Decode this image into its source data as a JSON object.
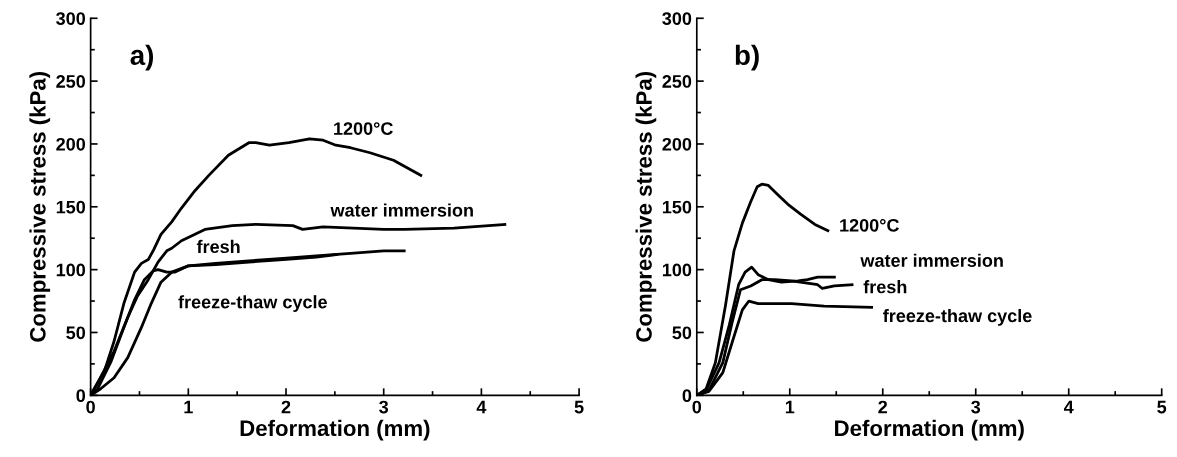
{
  "chart_data": [
    {
      "type": "line",
      "title": "a)",
      "xlabel": "Deformation (mm)",
      "ylabel": "Compressive stress (kPa)",
      "xlim": [
        0,
        5
      ],
      "ylim": [
        0,
        300
      ],
      "xticks": [
        0,
        1,
        2,
        3,
        4,
        5
      ],
      "yticks": [
        0,
        50,
        100,
        150,
        200,
        250,
        300
      ],
      "grid": false,
      "legend": false,
      "line_style": "solid",
      "marker": "none",
      "series": [
        {
          "name": "1200°C",
          "color": "#000000",
          "x": [
            0,
            0.14,
            0.24,
            0.34,
            0.45,
            0.52,
            0.59,
            0.64,
            0.72,
            0.83,
            0.93,
            1.07,
            1.21,
            1.41,
            1.62,
            1.69,
            1.83,
            2.03,
            2.24,
            2.38,
            2.51,
            2.66,
            2.86,
            3.1,
            3.38
          ],
          "values": [
            0,
            19,
            43,
            73,
            98,
            105,
            108,
            115,
            128,
            138,
            149,
            163,
            175,
            191,
            201,
            201,
            199,
            201,
            204,
            203,
            199,
            197,
            193,
            187,
            175
          ]
        },
        {
          "name": "water immersion",
          "color": "#000000",
          "x": [
            0,
            0.1,
            0.24,
            0.38,
            0.48,
            0.59,
            0.69,
            0.78,
            0.83,
            0.93,
            1.17,
            1.45,
            1.69,
            2.07,
            2.17,
            2.38,
            3.0,
            3.21,
            3.72,
            4.24
          ],
          "values": [
            0,
            14,
            35,
            62,
            79,
            92,
            106,
            115,
            117,
            123,
            132,
            135,
            136,
            135,
            132,
            134,
            132,
            132,
            133,
            136
          ]
        },
        {
          "name": "fresh",
          "color": "#000000",
          "x": [
            0,
            0.07,
            0.21,
            0.34,
            0.45,
            0.55,
            0.64,
            0.69,
            0.78,
            0.86,
            1.0,
            1.28,
            1.62,
            1.97,
            2.31,
            2.66,
            3.0,
            3.21
          ],
          "values": [
            0,
            5,
            27,
            54,
            76,
            92,
            99,
            100,
            98,
            98,
            103,
            105,
            107,
            109,
            111,
            113,
            115,
            115
          ]
        },
        {
          "name": "freeze-thaw cycle",
          "color": "#000000",
          "x": [
            0,
            0.1,
            0.24,
            0.38,
            0.52,
            0.62,
            0.72,
            0.83,
            1.0,
            1.28,
            1.62,
            1.97,
            2.31,
            2.52
          ],
          "values": [
            0,
            5,
            14,
            30,
            54,
            73,
            90,
            98,
            103,
            104,
            106,
            108,
            110,
            112
          ]
        }
      ]
    },
    {
      "type": "line",
      "title": "b)",
      "xlabel": "Deformation (mm)",
      "ylabel": "Compressive stress (kPa)",
      "xlim": [
        0,
        5
      ],
      "ylim": [
        0,
        300
      ],
      "xticks": [
        0,
        1,
        2,
        3,
        4,
        5
      ],
      "yticks": [
        0,
        50,
        100,
        150,
        200,
        250,
        300
      ],
      "grid": false,
      "legend": false,
      "line_style": "solid",
      "marker": "none",
      "series": [
        {
          "name": "1200°C",
          "color": "#000000",
          "x": [
            0,
            0.1,
            0.2,
            0.31,
            0.4,
            0.49,
            0.58,
            0.65,
            0.7,
            0.77,
            0.88,
            0.98,
            1.12,
            1.27,
            1.41
          ],
          "values": [
            0,
            5,
            26,
            72,
            115,
            137,
            154,
            166,
            168,
            167,
            159,
            152,
            144,
            136,
            131
          ]
        },
        {
          "name": "water immersion",
          "color": "#000000",
          "x": [
            0,
            0.1,
            0.24,
            0.35,
            0.45,
            0.52,
            0.59,
            0.66,
            0.77,
            0.91,
            1.09,
            1.19,
            1.3,
            1.48
          ],
          "values": [
            0,
            4,
            26,
            56,
            88,
            98,
            102,
            96,
            92,
            90,
            91,
            92,
            94,
            94
          ]
        },
        {
          "name": "fresh",
          "color": "#000000",
          "x": [
            0,
            0.13,
            0.28,
            0.38,
            0.47,
            0.58,
            0.7,
            0.84,
            1.02,
            1.3,
            1.35,
            1.48,
            1.67
          ],
          "values": [
            0,
            4,
            26,
            58,
            84,
            87,
            92,
            92,
            91,
            88,
            85,
            87,
            88
          ]
        },
        {
          "name": "freeze-thaw cycle",
          "color": "#000000",
          "x": [
            0,
            0.13,
            0.28,
            0.38,
            0.49,
            0.56,
            0.66,
            1.02,
            1.37,
            1.88
          ],
          "values": [
            0,
            3,
            18,
            42,
            68,
            75,
            73,
            73,
            71,
            70
          ]
        }
      ]
    }
  ]
}
